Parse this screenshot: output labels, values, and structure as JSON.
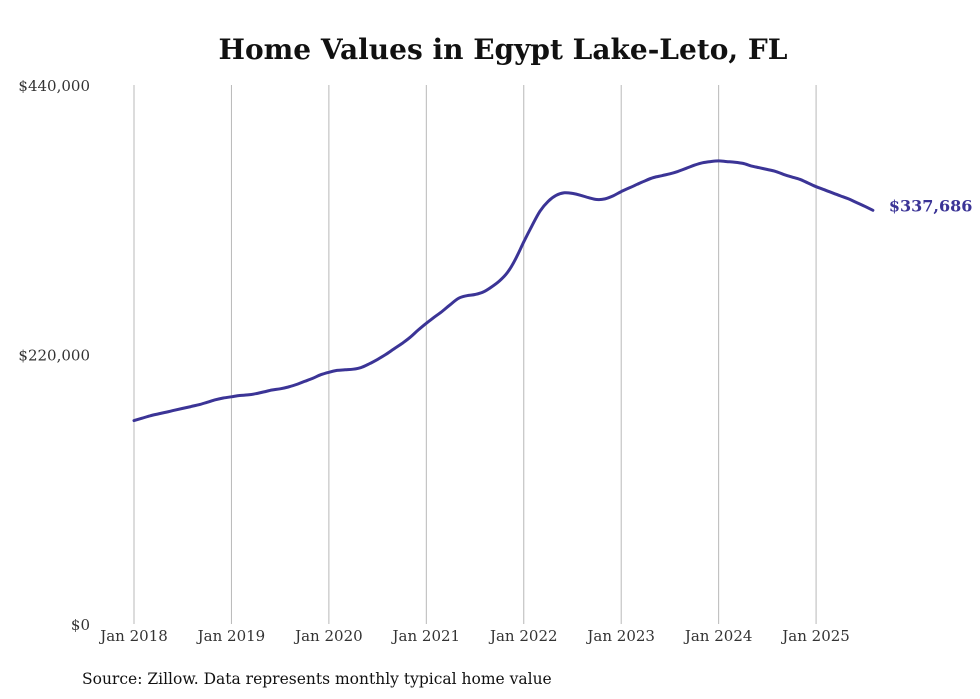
{
  "chart_data": {
    "type": "line",
    "title": "Home Values in Egypt Lake-Leto, FL",
    "xlabel": "",
    "ylabel": "",
    "ylim": [
      0,
      440000
    ],
    "y_ticks": [
      {
        "value": 0,
        "label": "$0"
      },
      {
        "value": 220000,
        "label": "$220,000"
      },
      {
        "value": 440000,
        "label": "$440,000"
      }
    ],
    "x_ticks": [
      {
        "date": "2018-01",
        "label": "Jan 2018"
      },
      {
        "date": "2019-01",
        "label": "Jan 2019"
      },
      {
        "date": "2020-01",
        "label": "Jan 2020"
      },
      {
        "date": "2021-01",
        "label": "Jan 2021"
      },
      {
        "date": "2022-01",
        "label": "Jan 2022"
      },
      {
        "date": "2023-01",
        "label": "Jan 2023"
      },
      {
        "date": "2024-01",
        "label": "Jan 2024"
      },
      {
        "date": "2025-01",
        "label": "Jan 2025"
      }
    ],
    "grid": "vertical",
    "line_color": "#3b3496",
    "series": [
      {
        "x": [
          "2018-01",
          "2018-02",
          "2018-03",
          "2018-04",
          "2018-05",
          "2018-06",
          "2018-07",
          "2018-08",
          "2018-09",
          "2018-10",
          "2018-11",
          "2018-12",
          "2019-01",
          "2019-02",
          "2019-03",
          "2019-04",
          "2019-05",
          "2019-06",
          "2019-07",
          "2019-08",
          "2019-09",
          "2019-10",
          "2019-11",
          "2019-12",
          "2020-01",
          "2020-02",
          "2020-03",
          "2020-04",
          "2020-05",
          "2020-06",
          "2020-07",
          "2020-08",
          "2020-09",
          "2020-10",
          "2020-11",
          "2020-12",
          "2021-01",
          "2021-02",
          "2021-03",
          "2021-04",
          "2021-05",
          "2021-06",
          "2021-07",
          "2021-08",
          "2021-09",
          "2021-10",
          "2021-11",
          "2021-12",
          "2022-01",
          "2022-02",
          "2022-03",
          "2022-04",
          "2022-05",
          "2022-06",
          "2022-07",
          "2022-08",
          "2022-09",
          "2022-10",
          "2022-11",
          "2022-12",
          "2023-01",
          "2023-02",
          "2023-03",
          "2023-04",
          "2023-05",
          "2023-06",
          "2023-07",
          "2023-08",
          "2023-09",
          "2023-10",
          "2023-11",
          "2023-12",
          "2024-01",
          "2024-02",
          "2024-03",
          "2024-04",
          "2024-05",
          "2024-06",
          "2024-07",
          "2024-08",
          "2024-09",
          "2024-10",
          "2024-11",
          "2024-12",
          "2025-01",
          "2025-02",
          "2025-03",
          "2025-04",
          "2025-05",
          "2025-06",
          "2025-07",
          "2025-08"
        ],
        "values": [
          166000,
          168000,
          170000,
          171500,
          173000,
          174500,
          176000,
          177500,
          179000,
          181000,
          183000,
          184500,
          185500,
          186500,
          187000,
          188000,
          189500,
          191000,
          192000,
          193500,
          195500,
          198000,
          200500,
          203500,
          205500,
          207000,
          207500,
          208000,
          209500,
          212500,
          216000,
          220000,
          224500,
          229000,
          234000,
          240000,
          245500,
          250500,
          255500,
          261000,
          266000,
          268000,
          269000,
          271000,
          275000,
          280000,
          287000,
          298000,
          312000,
          325000,
          337000,
          345000,
          350000,
          352000,
          351500,
          350000,
          348000,
          346500,
          347000,
          349500,
          353000,
          356000,
          359000,
          362000,
          364500,
          366000,
          367500,
          369500,
          372000,
          374500,
          376500,
          377500,
          378000,
          377500,
          377000,
          376000,
          374000,
          372500,
          371000,
          369500,
          367000,
          365000,
          363000,
          360000,
          357000,
          354500,
          352000,
          349500,
          347000,
          344000,
          341000,
          337686
        ]
      }
    ],
    "end_label": "$337,686"
  },
  "footer": {
    "source_text": "Source: Zillow. Data represents monthly typical home value"
  }
}
